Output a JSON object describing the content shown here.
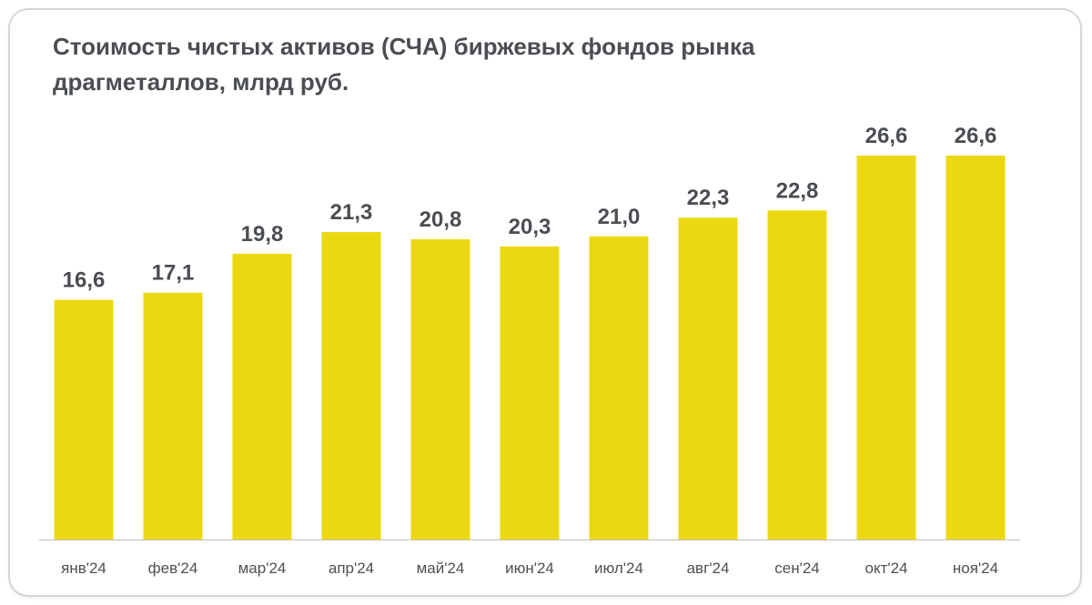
{
  "chart_data": {
    "type": "bar",
    "title": "Стоимость чистых активов (СЧА) биржевых фондов рынка драгметаллов, млрд руб.",
    "categories": [
      "янв'24",
      "фев'24",
      "мар'24",
      "апр'24",
      "май'24",
      "июн'24",
      "июл'24",
      "авг'24",
      "сен'24",
      "окт'24",
      "ноя'24"
    ],
    "values": [
      16.6,
      17.1,
      19.8,
      21.3,
      20.8,
      20.3,
      21.0,
      22.3,
      22.8,
      26.6,
      26.6
    ],
    "data_labels": [
      "16,6",
      "17,1",
      "19,8",
      "21,3",
      "20,8",
      "20,3",
      "21,0",
      "22,3",
      "22,8",
      "26,6",
      "26,6"
    ],
    "xlabel": "",
    "ylabel": "",
    "ylim": [
      0,
      26.6
    ],
    "grid": false,
    "legend": "none",
    "colors": {
      "bar": "#ecd810",
      "axis": "#bfbfbf",
      "text": "#4a4d52"
    }
  }
}
